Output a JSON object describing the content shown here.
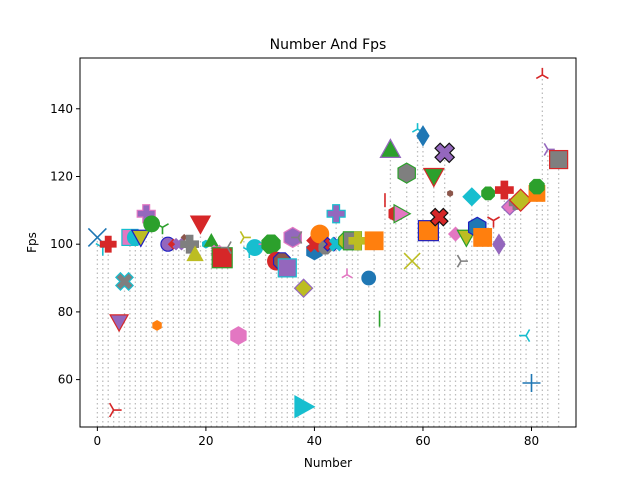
{
  "chart_data": {
    "type": "scatter",
    "title": "Number And Fps",
    "xlabel": "Number",
    "ylabel": "Fps",
    "xlim": [
      -3.2,
      88.2
    ],
    "ylim": [
      46,
      155
    ],
    "xticks": [
      0,
      20,
      40,
      60,
      80
    ],
    "yticks": [
      60,
      80,
      100,
      120,
      140
    ],
    "baseline": 46,
    "stems": "dotted",
    "grid": false,
    "legend": "none",
    "points": [
      {
        "x": 0,
        "y": 102,
        "m": "x",
        "c": "#1f77b4",
        "s": 18
      },
      {
        "x": 1,
        "y": 99,
        "m": "1",
        "c": "#17becf",
        "s": 16
      },
      {
        "x": 2,
        "y": 100,
        "m": "P",
        "c": "#d62728",
        "s": 16
      },
      {
        "x": 3,
        "y": 51,
        "m": "3",
        "c": "#d62728",
        "s": 16
      },
      {
        "x": 4,
        "y": 77,
        "m": "v",
        "c": "#9467bd",
        "s": 18,
        "e": "#d62728"
      },
      {
        "x": 5,
        "y": 89,
        "m": "X",
        "c": "#7f7f7f",
        "s": 18,
        "e": "#17becf"
      },
      {
        "x": 6,
        "y": 102,
        "m": "s",
        "c": "#e377c2",
        "s": 16,
        "e": "#17becf"
      },
      {
        "x": 7,
        "y": 102,
        "m": "o",
        "c": "#17becf",
        "s": 16
      },
      {
        "x": 8,
        "y": 102,
        "m": "v",
        "c": "#bcbd22",
        "s": 18,
        "e": "#1f1fbf"
      },
      {
        "x": 9,
        "y": 109,
        "m": "P",
        "c": "#9467bd",
        "s": 18,
        "e": "#e377c2"
      },
      {
        "x": 10,
        "y": 106,
        "m": "o",
        "c": "#2ca02c",
        "s": 16
      },
      {
        "x": 11,
        "y": 76,
        "m": "h",
        "c": "#ff7f0e",
        "s": 10
      },
      {
        "x": 12,
        "y": 105,
        "m": "1",
        "c": "#2ca02c",
        "s": 14
      },
      {
        "x": 13,
        "y": 100,
        "m": "o",
        "c": "#9467bd",
        "s": 14,
        "e": "#2020c0"
      },
      {
        "x": 14,
        "y": 100,
        "m": "D",
        "c": "#d62728",
        "s": 10
      },
      {
        "x": 15,
        "y": 100,
        "m": "X",
        "c": "#9467bd",
        "s": 12
      },
      {
        "x": 16,
        "y": 102,
        "m": "D",
        "c": "#8c564b",
        "s": 6
      },
      {
        "x": 17,
        "y": 100,
        "m": "P",
        "c": "#7f7f7f",
        "s": 18
      },
      {
        "x": 18,
        "y": 97,
        "m": "^",
        "c": "#bcbd22",
        "s": 16
      },
      {
        "x": 19,
        "y": 106,
        "m": "v",
        "c": "#d62728",
        "s": 20
      },
      {
        "x": 20,
        "y": 100,
        "m": "h",
        "c": "#17becf",
        "s": 8
      },
      {
        "x": 21,
        "y": 101,
        "m": "^",
        "c": "#2ca02c",
        "s": 14
      },
      {
        "x": 22,
        "y": 98,
        "m": "X",
        "c": "#e377c2",
        "s": 12
      },
      {
        "x": 23,
        "y": 96,
        "m": "s",
        "c": "#d62728",
        "s": 20,
        "e": "#2ca02c"
      },
      {
        "x": 24,
        "y": 99,
        "m": "4",
        "c": "#7f7f7f",
        "s": 14
      },
      {
        "x": 26,
        "y": 73,
        "m": "h",
        "c": "#e377c2",
        "s": 18
      },
      {
        "x": 27,
        "y": 102,
        "m": "3",
        "c": "#bcbd22",
        "s": 14
      },
      {
        "x": 28,
        "y": 98,
        "m": "1",
        "c": "#17becf",
        "s": 14
      },
      {
        "x": 29,
        "y": 99,
        "m": "o",
        "c": "#17becf",
        "s": 16
      },
      {
        "x": 31,
        "y": 100,
        "m": "4",
        "c": "#e377c2",
        "s": 14
      },
      {
        "x": 32,
        "y": 100,
        "m": "8",
        "c": "#2ca02c",
        "s": 20
      },
      {
        "x": 33,
        "y": 95,
        "m": "o",
        "c": "#d62728",
        "s": 18
      },
      {
        "x": 34,
        "y": 95,
        "m": "8",
        "c": "#8c564b",
        "s": 18,
        "e": "#1f1fbf"
      },
      {
        "x": 35,
        "y": 93,
        "m": "s",
        "c": "#9467bd",
        "s": 18,
        "e": "#17becf"
      },
      {
        "x": 36,
        "y": 102,
        "m": "h",
        "c": "#9467bd",
        "s": 20,
        "e": "#e377c2"
      },
      {
        "x": 37,
        "y": 102,
        "m": "4",
        "c": "#7f7f7f",
        "s": 14
      },
      {
        "x": 38,
        "y": 87,
        "m": "D",
        "c": "#bcbd22",
        "s": 18,
        "e": "#9467bd"
      },
      {
        "x": 38,
        "y": 52,
        "m": ">",
        "c": "#17becf",
        "s": 22
      },
      {
        "x": 40,
        "y": 98,
        "m": "h",
        "c": "#1f77b4",
        "s": 18
      },
      {
        "x": 40,
        "y": 100,
        "m": "X",
        "c": "#d62728",
        "s": 16
      },
      {
        "x": 41,
        "y": 103,
        "m": "o",
        "c": "#ff7f0e",
        "s": 18
      },
      {
        "x": 42,
        "y": 99,
        "m": "8",
        "c": "#7f7f7f",
        "s": 14
      },
      {
        "x": 43,
        "y": 100,
        "m": "X",
        "c": "#d62728",
        "s": 14,
        "e": "#1f1fbf"
      },
      {
        "x": 44,
        "y": 109,
        "m": "P",
        "c": "#9467bd",
        "s": 18,
        "e": "#17becf"
      },
      {
        "x": 44,
        "y": 100,
        "m": "X",
        "c": "#17becf",
        "s": 14
      },
      {
        "x": 46,
        "y": 91,
        "m": "2",
        "c": "#e377c2",
        "s": 12
      },
      {
        "x": 46,
        "y": 101,
        "m": "8",
        "c": "#bcbd22",
        "s": 18,
        "e": "#2ca02c"
      },
      {
        "x": 47,
        "y": 101,
        "m": "s",
        "c": "#7f7f7f",
        "s": 18,
        "e": "#2ca02c"
      },
      {
        "x": 48,
        "y": 101,
        "m": "P",
        "c": "#bcbd22",
        "s": 18
      },
      {
        "x": 50,
        "y": 90,
        "m": "o",
        "c": "#1f77b4",
        "s": 14
      },
      {
        "x": 51,
        "y": 101,
        "m": "s",
        "c": "#ff7f0e",
        "s": 18
      },
      {
        "x": 52,
        "y": 78,
        "m": "|",
        "c": "#2ca02c",
        "s": 16
      },
      {
        "x": 53,
        "y": 113,
        "m": "|",
        "c": "#d62728",
        "s": 14
      },
      {
        "x": 54,
        "y": 128,
        "m": "^",
        "c": "#2ca02c",
        "s": 20,
        "e": "#9467bd"
      },
      {
        "x": 55,
        "y": 109,
        "m": "h",
        "c": "#d62728",
        "s": 16
      },
      {
        "x": 56,
        "y": 109,
        "m": ">",
        "c": "#e377c2",
        "s": 18,
        "e": "#2ca02c"
      },
      {
        "x": 57,
        "y": 121,
        "m": "h",
        "c": "#7f7f7f",
        "s": 20,
        "e": "#2ca02c"
      },
      {
        "x": 58,
        "y": 95,
        "m": "x",
        "c": "#bcbd22",
        "s": 16
      },
      {
        "x": 59,
        "y": 134,
        "m": "2",
        "c": "#17becf",
        "s": 12
      },
      {
        "x": 60,
        "y": 132,
        "m": "d",
        "c": "#1f77b4",
        "s": 20
      },
      {
        "x": 61,
        "y": 104,
        "m": "s",
        "c": "#ff7f0e",
        "s": 20,
        "e": "#1f1fbf"
      },
      {
        "x": 62,
        "y": 120,
        "m": "v",
        "c": "#2ca02c",
        "s": 20,
        "e": "#d62728"
      },
      {
        "x": 63,
        "y": 108,
        "m": "X",
        "c": "#d62728",
        "s": 18,
        "e": "#111111"
      },
      {
        "x": 64,
        "y": 127,
        "m": "X",
        "c": "#9467bd",
        "s": 20,
        "e": "#111111"
      },
      {
        "x": 65,
        "y": 115,
        "m": "h",
        "c": "#8c564b",
        "s": 6
      },
      {
        "x": 66,
        "y": 103,
        "m": "D",
        "c": "#e377c2",
        "s": 14
      },
      {
        "x": 67,
        "y": 95,
        "m": "3",
        "c": "#7f7f7f",
        "s": 14
      },
      {
        "x": 68,
        "y": 102,
        "m": "v",
        "c": "#bcbd22",
        "s": 18,
        "e": "#2ca02c"
      },
      {
        "x": 69,
        "y": 114,
        "m": "D",
        "c": "#17becf",
        "s": 18
      },
      {
        "x": 70,
        "y": 105,
        "m": "h",
        "c": "#1f77b4",
        "s": 20,
        "e": "#1f1fbf"
      },
      {
        "x": 71,
        "y": 102,
        "m": "s",
        "c": "#ff7f0e",
        "s": 18
      },
      {
        "x": 72,
        "y": 115,
        "m": "8",
        "c": "#2ca02c",
        "s": 14
      },
      {
        "x": 73,
        "y": 107,
        "m": "1",
        "c": "#d62728",
        "s": 14
      },
      {
        "x": 74,
        "y": 100,
        "m": "d",
        "c": "#9467bd",
        "s": 20
      },
      {
        "x": 75,
        "y": 116,
        "m": "P",
        "c": "#d62728",
        "s": 18
      },
      {
        "x": 76,
        "y": 111,
        "m": "D",
        "c": "#e377c2",
        "s": 16,
        "e": "#9467bd"
      },
      {
        "x": 77,
        "y": 112,
        "m": "P",
        "c": "#7f7f7f",
        "s": 12
      },
      {
        "x": 78,
        "y": 113,
        "m": "D",
        "c": "#bcbd22",
        "s": 22,
        "e": "#d62728"
      },
      {
        "x": 79,
        "y": 73,
        "m": "4",
        "c": "#17becf",
        "s": 14
      },
      {
        "x": 80,
        "y": 59,
        "m": "+",
        "c": "#1f77b4",
        "s": 18
      },
      {
        "x": 81,
        "y": 115,
        "m": "s",
        "c": "#ff7f0e",
        "s": 16
      },
      {
        "x": 81,
        "y": 117,
        "m": "8",
        "c": "#2ca02c",
        "s": 16
      },
      {
        "x": 82,
        "y": 150,
        "m": "2",
        "c": "#d62728",
        "s": 14
      },
      {
        "x": 83,
        "y": 128,
        "m": "3",
        "c": "#9467bd",
        "s": 14
      },
      {
        "x": 85,
        "y": 125,
        "m": "s",
        "c": "#7f7f7f",
        "s": 18,
        "e": "#d62728"
      }
    ]
  }
}
